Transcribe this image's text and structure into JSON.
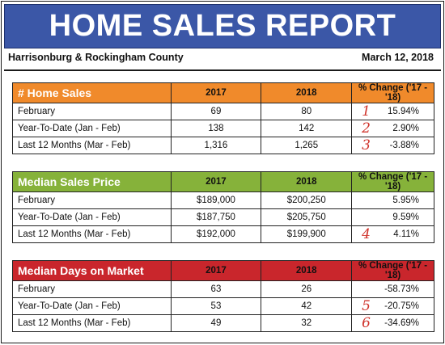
{
  "header": {
    "title": "HOME SALES REPORT",
    "region": "Harrisonburg & Rockingham County",
    "date": "March 12, 2018"
  },
  "colors": {
    "banner": "#3b57a7",
    "sales_header": "#f08a2b",
    "price_header": "#86b23a",
    "days_header": "#c9262c",
    "annotation": "#d0342c"
  },
  "tables": [
    {
      "title": "# Home Sales",
      "col_2017": "2017",
      "col_2018": "2018",
      "col_change": "% Change ('17 - '18)",
      "rows": [
        {
          "label": "February",
          "v2017": "69",
          "v2018": "80",
          "mark": "1",
          "change": "15.94%"
        },
        {
          "label": "Year-To-Date (Jan - Feb)",
          "v2017": "138",
          "v2018": "142",
          "mark": "2",
          "change": "2.90%"
        },
        {
          "label": "Last 12 Months (Mar - Feb)",
          "v2017": "1,316",
          "v2018": "1,265",
          "mark": "3",
          "change": "-3.88%"
        }
      ]
    },
    {
      "title": "Median Sales Price",
      "col_2017": "2017",
      "col_2018": "2018",
      "col_change": "% Change ('17 - '18)",
      "rows": [
        {
          "label": "February",
          "v2017": "$189,000",
          "v2018": "$200,250",
          "mark": "",
          "change": "5.95%"
        },
        {
          "label": "Year-To-Date (Jan - Feb)",
          "v2017": "$187,750",
          "v2018": "$205,750",
          "mark": "",
          "change": "9.59%"
        },
        {
          "label": "Last 12 Months (Mar - Feb)",
          "v2017": "$192,000",
          "v2018": "$199,900",
          "mark": "4",
          "change": "4.11%"
        }
      ]
    },
    {
      "title": "Median Days on Market",
      "col_2017": "2017",
      "col_2018": "2018",
      "col_change": "% Change ('17 - '18)",
      "rows": [
        {
          "label": "February",
          "v2017": "63",
          "v2018": "26",
          "mark": "",
          "change": "-58.73%"
        },
        {
          "label": "Year-To-Date (Jan - Feb)",
          "v2017": "53",
          "v2018": "42",
          "mark": "5",
          "change": "-20.75%"
        },
        {
          "label": "Last 12 Months (Mar - Feb)",
          "v2017": "49",
          "v2018": "32",
          "mark": "6",
          "change": "-34.69%"
        }
      ]
    }
  ]
}
